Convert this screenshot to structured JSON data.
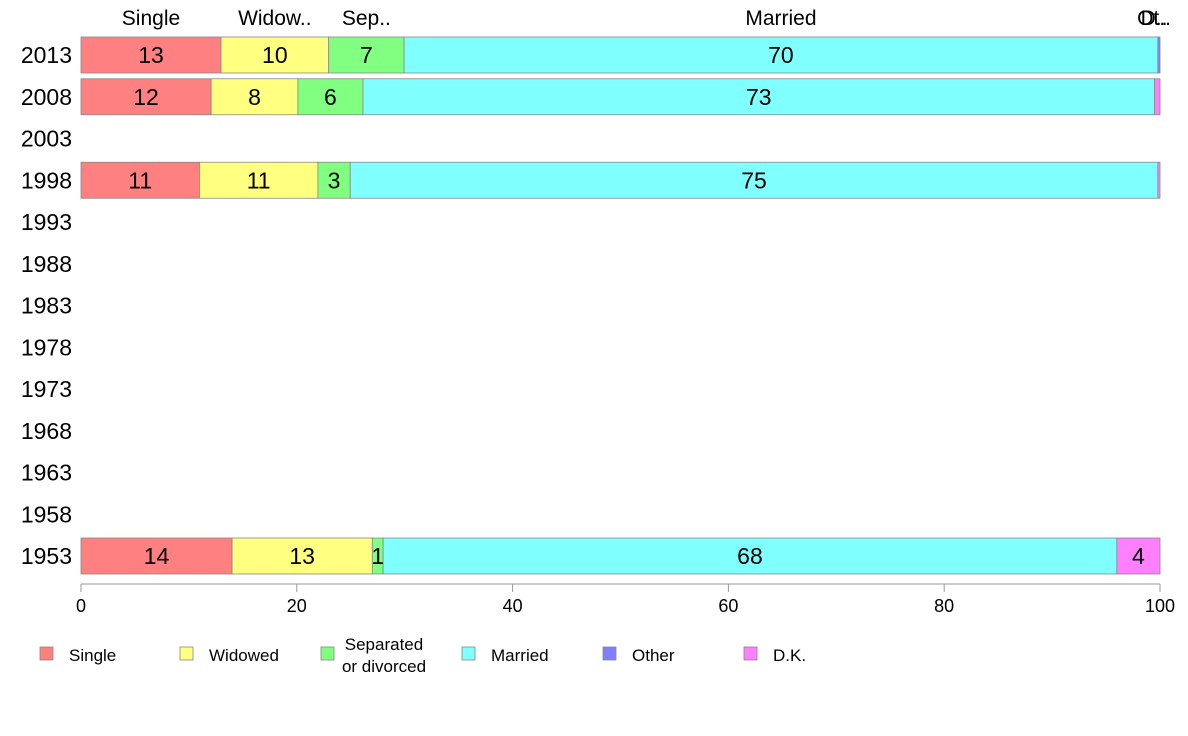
{
  "chart_data": {
    "type": "bar",
    "orientation": "horizontal",
    "stacked": true,
    "categories": [
      "2013",
      "2008",
      "2003",
      "1998",
      "1993",
      "1988",
      "1983",
      "1978",
      "1973",
      "1968",
      "1963",
      "1958",
      "1953"
    ],
    "top_labels": [
      "Single",
      "Widow..",
      "Sep..",
      "Married",
      "Ot..",
      "D.."
    ],
    "series": [
      {
        "name": "Single",
        "color": "#ff8080",
        "values": [
          13,
          12,
          null,
          11,
          null,
          null,
          null,
          null,
          null,
          null,
          null,
          null,
          14
        ]
      },
      {
        "name": "Widowed",
        "color": "#ffff80",
        "values": [
          10,
          8,
          null,
          11,
          null,
          null,
          null,
          null,
          null,
          null,
          null,
          null,
          13
        ]
      },
      {
        "name": "Separated\nor divorced",
        "color": "#80ff80",
        "values": [
          7,
          6,
          null,
          3,
          null,
          null,
          null,
          null,
          null,
          null,
          null,
          null,
          1
        ]
      },
      {
        "name": "Married",
        "color": "#80ffff",
        "values": [
          70,
          73,
          null,
          75,
          null,
          null,
          null,
          null,
          null,
          null,
          null,
          null,
          68
        ]
      },
      {
        "name": "Other",
        "color": "#8080ff",
        "values": [
          0.2,
          0,
          null,
          0,
          null,
          null,
          null,
          null,
          null,
          null,
          null,
          null,
          0
        ]
      },
      {
        "name": "D.K.",
        "color": "#ff80ff",
        "values": [
          0,
          0.5,
          null,
          0.2,
          null,
          null,
          null,
          null,
          null,
          null,
          null,
          null,
          4
        ]
      }
    ],
    "data_labels": [
      [
        "13",
        "10",
        "7",
        "70",
        "",
        ""
      ],
      [
        "12",
        "8",
        "6",
        "73",
        "",
        ""
      ],
      [
        "",
        "",
        "",
        "",
        "",
        ""
      ],
      [
        "11",
        "11",
        "3",
        "75",
        "",
        ""
      ],
      [
        "",
        "",
        "",
        "",
        "",
        ""
      ],
      [
        "",
        "",
        "",
        "",
        "",
        ""
      ],
      [
        "",
        "",
        "",
        "",
        "",
        ""
      ],
      [
        "",
        "",
        "",
        "",
        "",
        ""
      ],
      [
        "",
        "",
        "",
        "",
        "",
        ""
      ],
      [
        "",
        "",
        "",
        "",
        "",
        ""
      ],
      [
        "",
        "",
        "",
        "",
        "",
        ""
      ],
      [
        "",
        "",
        "",
        "",
        "",
        ""
      ],
      [
        "14",
        "13",
        "1",
        "68",
        "",
        "4"
      ]
    ],
    "xlim": [
      0,
      100
    ],
    "xticks": [
      "0",
      "20",
      "40",
      "60",
      "80",
      "100"
    ],
    "legend_position": "bottom",
    "grid": false
  }
}
